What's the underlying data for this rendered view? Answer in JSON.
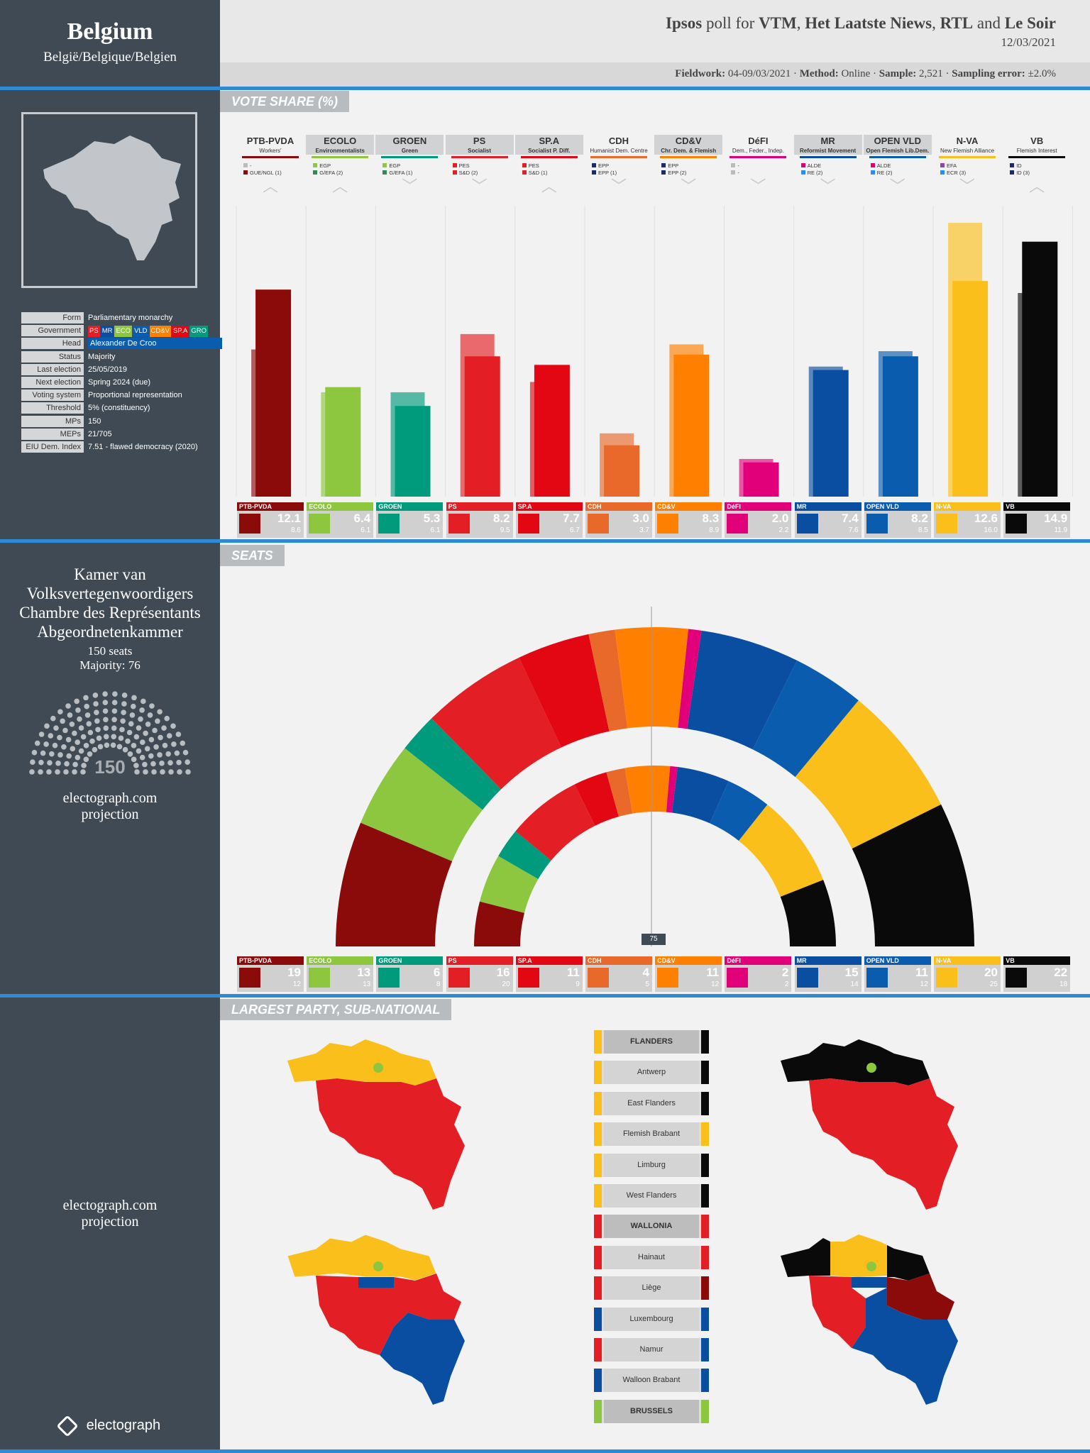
{
  "country": {
    "name": "Belgium",
    "native": "België/Belgique/Belgien"
  },
  "header": {
    "pollster": "Ipsos",
    "poll_for": "poll for",
    "clients": [
      "VTM",
      "Het Laatste Niews",
      "RTL",
      "Le Soir"
    ],
    "and_word": "and",
    "date": "12/03/2021",
    "fieldwork_label": "Fieldwork:",
    "fieldwork": "04-09/03/2021",
    "method_label": "Method:",
    "method": "Online",
    "sample_label": "Sample:",
    "sample": "2,521",
    "error_label": "Sampling error:",
    "error": "±2.0%"
  },
  "info": [
    {
      "k": "Form",
      "v": "Parliamentary monarchy"
    },
    {
      "k": "Government",
      "v": ""
    },
    {
      "k": "Head",
      "v": "Alexander De Croo"
    },
    {
      "k": "Status",
      "v": "Majority"
    },
    {
      "k": "Last election",
      "v": "25/05/2019"
    },
    {
      "k": "Next election",
      "v": "Spring 2024 (due)"
    },
    {
      "k": "Voting system",
      "v": "Proportional representation"
    },
    {
      "k": "Threshold",
      "v": "5% (constituency)"
    },
    {
      "k": "MPs",
      "v": "150"
    },
    {
      "k": "MEPs",
      "v": "21/705"
    },
    {
      "k": "EIU Dem. Index",
      "v": "7.51 - flawed democracy (2020)"
    }
  ],
  "government_parties": [
    {
      "label": "PS",
      "color": "#e31e24"
    },
    {
      "label": "MR",
      "color": "#0a4ea1"
    },
    {
      "label": "ECO",
      "color": "#8dc63f"
    },
    {
      "label": "VLD",
      "color": "#0a5cae"
    },
    {
      "label": "CD&V",
      "color": "#ff8000"
    },
    {
      "label": "SP.A",
      "color": "#e30613"
    },
    {
      "label": "GRO",
      "color": "#009a7c"
    }
  ],
  "parliament": {
    "names": [
      "Kamer van",
      "Volksvertegenwoordigers",
      "Chambre des Représentants",
      "Abgeordnetenkammer"
    ],
    "seats_text": "150 seats",
    "majority_text": "Majority: 76",
    "total": "150",
    "credit": [
      "electograph.com",
      "projection"
    ]
  },
  "sections": {
    "vote": "VOTE SHARE (%)",
    "seats": "SEATS",
    "largest": "LARGEST PARTY, SUB-NATIONAL"
  },
  "majority_marker": "75",
  "chart_data": {
    "type": "bar",
    "parties": [
      {
        "name": "PTB-PVDA",
        "desc": "Workers'",
        "groups": [
          "-",
          "GUE/NGL (1)"
        ],
        "gcolors": [
          "#bbb",
          "#8b0a0a"
        ],
        "color": "#8b0a0a",
        "trend": "up",
        "vote": 12.1,
        "vote_prev": 8.6,
        "seats": 19,
        "seats_prev": 12,
        "gov": false
      },
      {
        "name": "ECOLO",
        "desc": "Environmentalists",
        "groups": [
          "EGP",
          "G/EFA (2)"
        ],
        "gcolors": [
          "#8dc63f",
          "#2e8b57"
        ],
        "color": "#8dc63f",
        "trend": "up",
        "vote": 6.4,
        "vote_prev": 6.1,
        "seats": 13,
        "seats_prev": 13,
        "gov": true
      },
      {
        "name": "GROEN",
        "desc": "Green",
        "groups": [
          "EGP",
          "G/EFA (1)"
        ],
        "gcolors": [
          "#8dc63f",
          "#2e8b57"
        ],
        "color": "#009a7c",
        "trend": "down",
        "vote": 5.3,
        "vote_prev": 6.1,
        "seats": 6,
        "seats_prev": 8,
        "gov": true
      },
      {
        "name": "PS",
        "desc": "Socialist",
        "groups": [
          "PES",
          "S&D (2)"
        ],
        "gcolors": [
          "#e31e24",
          "#e31e24"
        ],
        "color": "#e31e24",
        "trend": "down",
        "vote": 8.2,
        "vote_prev": 9.5,
        "seats": 16,
        "seats_prev": 20,
        "gov": true
      },
      {
        "name": "SP.A",
        "desc": "Socialist P. Diff.",
        "groups": [
          "PES",
          "S&D (1)"
        ],
        "gcolors": [
          "#e31e24",
          "#e31e24"
        ],
        "color": "#e30613",
        "trend": "up",
        "vote": 7.7,
        "vote_prev": 6.7,
        "seats": 11,
        "seats_prev": 9,
        "gov": true
      },
      {
        "name": "CDH",
        "desc": "Humanist Dem. Centre",
        "groups": [
          "EPP",
          "EPP (1)"
        ],
        "gcolors": [
          "#1a2a6c",
          "#1a2a6c"
        ],
        "color": "#e8692a",
        "trend": "down",
        "vote": 3.0,
        "vote_prev": 3.7,
        "seats": 4,
        "seats_prev": 5,
        "gov": false
      },
      {
        "name": "CD&V",
        "desc": "Chr. Dem. & Flemish",
        "groups": [
          "EPP",
          "EPP (2)"
        ],
        "gcolors": [
          "#1a2a6c",
          "#1a2a6c"
        ],
        "color": "#ff8000",
        "trend": "down",
        "vote": 8.3,
        "vote_prev": 8.9,
        "seats": 11,
        "seats_prev": 12,
        "gov": true
      },
      {
        "name": "DéFI",
        "desc": "Dem., Feder., Indep.",
        "groups": [
          "-",
          "-"
        ],
        "gcolors": [
          "#bbb",
          "#bbb"
        ],
        "color": "#e2007a",
        "trend": "down",
        "vote": 2.0,
        "vote_prev": 2.2,
        "seats": 2,
        "seats_prev": 2,
        "gov": false
      },
      {
        "name": "MR",
        "desc": "Reformist Movement",
        "groups": [
          "ALDE",
          "RE (2)"
        ],
        "gcolors": [
          "#e2007a",
          "#1e90ff"
        ],
        "color": "#0a4ea1",
        "trend": "down",
        "vote": 7.4,
        "vote_prev": 7.6,
        "seats": 15,
        "seats_prev": 14,
        "gov": true
      },
      {
        "name": "OPEN VLD",
        "desc": "Open Flemish Lib.Dem.",
        "groups": [
          "ALDE",
          "RE (2)"
        ],
        "gcolors": [
          "#e2007a",
          "#1e90ff"
        ],
        "color": "#0a5cae",
        "trend": "down",
        "vote": 8.2,
        "vote_prev": 8.5,
        "seats": 11,
        "seats_prev": 12,
        "gov": true
      },
      {
        "name": "N-VA",
        "desc": "New Flemish Alliance",
        "groups": [
          "EFA",
          "ECR (3)"
        ],
        "gcolors": [
          "#8e44ad",
          "#1e90ff"
        ],
        "color": "#fbbf1b",
        "trend": "down",
        "vote": 12.6,
        "vote_prev": 16.0,
        "seats": 20,
        "seats_prev": 25,
        "gov": false
      },
      {
        "name": "VB",
        "desc": "Flemish Interest",
        "groups": [
          "ID",
          "ID (3)"
        ],
        "gcolors": [
          "#1a2a6c",
          "#1a2a6c"
        ],
        "color": "#0a0a0a",
        "trend": "up",
        "vote": 14.9,
        "vote_prev": 11.9,
        "seats": 22,
        "seats_prev": 18,
        "gov": false
      }
    ],
    "ylim": [
      0,
      17
    ]
  },
  "regions": [
    {
      "name": "FLANDERS",
      "head": true,
      "left": "#fbbf1b",
      "right": "#0a0a0a"
    },
    {
      "name": "Antwerp",
      "head": false,
      "left": "#fbbf1b",
      "right": "#0a0a0a"
    },
    {
      "name": "East Flanders",
      "head": false,
      "left": "#fbbf1b",
      "right": "#0a0a0a"
    },
    {
      "name": "Flemish Brabant",
      "head": false,
      "left": "#fbbf1b",
      "right": "#fbbf1b"
    },
    {
      "name": "Limburg",
      "head": false,
      "left": "#fbbf1b",
      "right": "#0a0a0a"
    },
    {
      "name": "West Flanders",
      "head": false,
      "left": "#fbbf1b",
      "right": "#0a0a0a"
    },
    {
      "name": "WALLONIA",
      "head": true,
      "left": "#e31e24",
      "right": "#e31e24"
    },
    {
      "name": "Hainaut",
      "head": false,
      "left": "#e31e24",
      "right": "#e31e24"
    },
    {
      "name": "Liège",
      "head": false,
      "left": "#e31e24",
      "right": "#8b0a0a"
    },
    {
      "name": "Luxembourg",
      "head": false,
      "left": "#0a4ea1",
      "right": "#0a4ea1"
    },
    {
      "name": "Namur",
      "head": false,
      "left": "#e31e24",
      "right": "#0a4ea1"
    },
    {
      "name": "Walloon Brabant",
      "head": false,
      "left": "#0a4ea1",
      "right": "#0a4ea1"
    },
    {
      "name": "BRUSSELS",
      "head": true,
      "left": "#8dc63f",
      "right": "#8dc63f"
    }
  ],
  "footer": {
    "brand": "electograph"
  }
}
